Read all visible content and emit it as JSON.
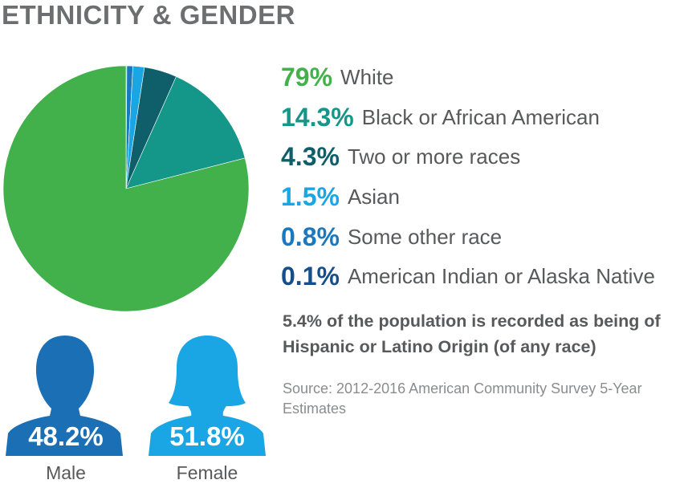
{
  "title": "ETHNICITY & GENDER",
  "chart_data": [
    {
      "type": "pie",
      "title": "",
      "series": [
        {
          "label": "White",
          "pct_text": "79%",
          "value": 79,
          "color": "#42b04b"
        },
        {
          "label": "Black or African American",
          "pct_text": "14.3%",
          "value": 14.3,
          "color": "#149688"
        },
        {
          "label": "Two or more races",
          "pct_text": "4.3%",
          "value": 4.3,
          "color": "#0f5f6a"
        },
        {
          "label": "Asian",
          "pct_text": "1.5%",
          "value": 1.5,
          "color": "#1aa6e4"
        },
        {
          "label": "Some other race",
          "pct_text": "0.8%",
          "value": 0.8,
          "color": "#1a78bf"
        },
        {
          "label": "American Indian or Alaska Native",
          "pct_text": "0.1%",
          "value": 0.1,
          "color": "#154e8a"
        }
      ]
    },
    {
      "type": "pictogram",
      "series": [
        {
          "label": "Male",
          "pct_text": "48.2%",
          "value": 48.2,
          "color": "#1a6fb5",
          "icon": "male-silhouette-icon"
        },
        {
          "label": "Female",
          "pct_text": "51.8%",
          "value": 51.8,
          "color": "#1aa6e4",
          "icon": "female-silhouette-icon"
        }
      ]
    }
  ],
  "note": "5.4% of the population is recorded as being of Hispanic or Latino Origin (of any race)",
  "source": "Source: 2012-2016 American Community Survey 5-Year Estimates"
}
